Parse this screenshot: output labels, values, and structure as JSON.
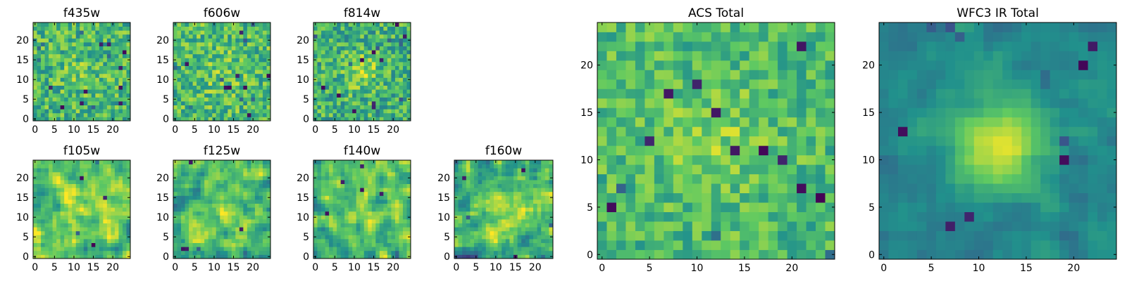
{
  "figure": {
    "colormap": "viridis",
    "colormap_stops": [
      "#440154",
      "#3b528b",
      "#21918c",
      "#5ec962",
      "#fde725"
    ],
    "background": "#ffffff"
  },
  "chart_data": [
    {
      "type": "heatmap",
      "title": "f435w",
      "grid_size": 25,
      "xlim": [
        -0.5,
        24.5
      ],
      "ylim": [
        -0.5,
        24.5
      ],
      "xticks": [
        0,
        5,
        10,
        15,
        20
      ],
      "yticks": [
        0,
        5,
        10,
        15,
        20
      ],
      "field": {
        "mean": 0.66,
        "noise": 0.22,
        "peak": 0.08,
        "center": [
          12,
          12
        ],
        "sigma": 4,
        "seed": 11,
        "outliers": 16,
        "smooth": 0
      }
    },
    {
      "type": "heatmap",
      "title": "f606w",
      "grid_size": 25,
      "xlim": [
        -0.5,
        24.5
      ],
      "ylim": [
        -0.5,
        24.5
      ],
      "xticks": [
        0,
        5,
        10,
        15,
        20
      ],
      "yticks": [
        0,
        5,
        10,
        15,
        20
      ],
      "field": {
        "mean": 0.68,
        "noise": 0.22,
        "peak": 0.08,
        "center": [
          12,
          12
        ],
        "sigma": 4,
        "seed": 23,
        "outliers": 16,
        "smooth": 0
      }
    },
    {
      "type": "heatmap",
      "title": "f814w",
      "grid_size": 25,
      "xlim": [
        -0.5,
        24.5
      ],
      "ylim": [
        -0.5,
        24.5
      ],
      "xticks": [
        0,
        5,
        10,
        15,
        20
      ],
      "yticks": [
        0,
        5,
        10,
        15,
        20
      ],
      "field": {
        "mean": 0.64,
        "noise": 0.22,
        "peak": 0.22,
        "center": [
          12,
          12
        ],
        "sigma": 3,
        "seed": 37,
        "outliers": 18,
        "smooth": 0
      }
    },
    {
      "type": "heatmap",
      "title": "f105w",
      "grid_size": 25,
      "xlim": [
        -0.5,
        24.5
      ],
      "ylim": [
        -0.5,
        24.5
      ],
      "xticks": [
        0,
        5,
        10,
        15,
        20
      ],
      "yticks": [
        0,
        5,
        10,
        15,
        20
      ],
      "field": {
        "mean": 0.72,
        "noise": 0.24,
        "peak": 0.15,
        "center": [
          13,
          13
        ],
        "sigma": 5,
        "seed": 51,
        "outliers": 5,
        "smooth": 1
      }
    },
    {
      "type": "heatmap",
      "title": "f125w",
      "grid_size": 25,
      "xlim": [
        -0.5,
        24.5
      ],
      "ylim": [
        -0.5,
        24.5
      ],
      "xticks": [
        0,
        5,
        10,
        15,
        20
      ],
      "yticks": [
        0,
        5,
        10,
        15,
        20
      ],
      "field": {
        "mean": 0.68,
        "noise": 0.26,
        "peak": 0.1,
        "center": [
          12,
          12
        ],
        "sigma": 5,
        "seed": 67,
        "outliers": 5,
        "smooth": 1
      }
    },
    {
      "type": "heatmap",
      "title": "f140w",
      "grid_size": 25,
      "xlim": [
        -0.5,
        24.5
      ],
      "ylim": [
        -0.5,
        24.5
      ],
      "xticks": [
        0,
        5,
        10,
        15,
        20
      ],
      "yticks": [
        0,
        5,
        10,
        15,
        20
      ],
      "field": {
        "mean": 0.68,
        "noise": 0.26,
        "peak": 0.14,
        "center": [
          12,
          12
        ],
        "sigma": 5,
        "seed": 79,
        "outliers": 5,
        "smooth": 1
      }
    },
    {
      "type": "heatmap",
      "title": "f160w",
      "grid_size": 25,
      "xlim": [
        -0.5,
        24.5
      ],
      "ylim": [
        -0.5,
        24.5
      ],
      "xticks": [
        0,
        5,
        10,
        15,
        20
      ],
      "yticks": [
        0,
        5,
        10,
        15,
        20
      ],
      "field": {
        "mean": 0.64,
        "noise": 0.26,
        "peak": 0.18,
        "center": [
          13,
          12
        ],
        "sigma": 4,
        "seed": 97,
        "outliers": 6,
        "smooth": 1
      }
    },
    {
      "type": "heatmap",
      "title": "ACS Total",
      "grid_size": 25,
      "xlim": [
        -0.5,
        24.5
      ],
      "ylim": [
        -0.5,
        24.5
      ],
      "xticks": [
        0,
        5,
        10,
        15,
        20
      ],
      "yticks": [
        0,
        5,
        10,
        15,
        20
      ],
      "field": {
        "mean": 0.68,
        "noise": 0.17,
        "peak": 0.12,
        "center": [
          12,
          12
        ],
        "sigma": 4,
        "seed": 131,
        "outliers": 14,
        "smooth": 0
      }
    },
    {
      "type": "heatmap",
      "title": "WFC3 IR Total",
      "grid_size": 25,
      "xlim": [
        -0.5,
        24.5
      ],
      "ylim": [
        -0.5,
        24.5
      ],
      "xticks": [
        0,
        5,
        10,
        15,
        20
      ],
      "yticks": [
        0,
        5,
        10,
        15,
        20
      ],
      "field": {
        "mean": 0.46,
        "noise": 0.1,
        "peak": 0.52,
        "center": [
          12,
          11.5
        ],
        "sigma": 3.2,
        "seed": 149,
        "outliers": 12,
        "smooth": 1
      }
    }
  ]
}
